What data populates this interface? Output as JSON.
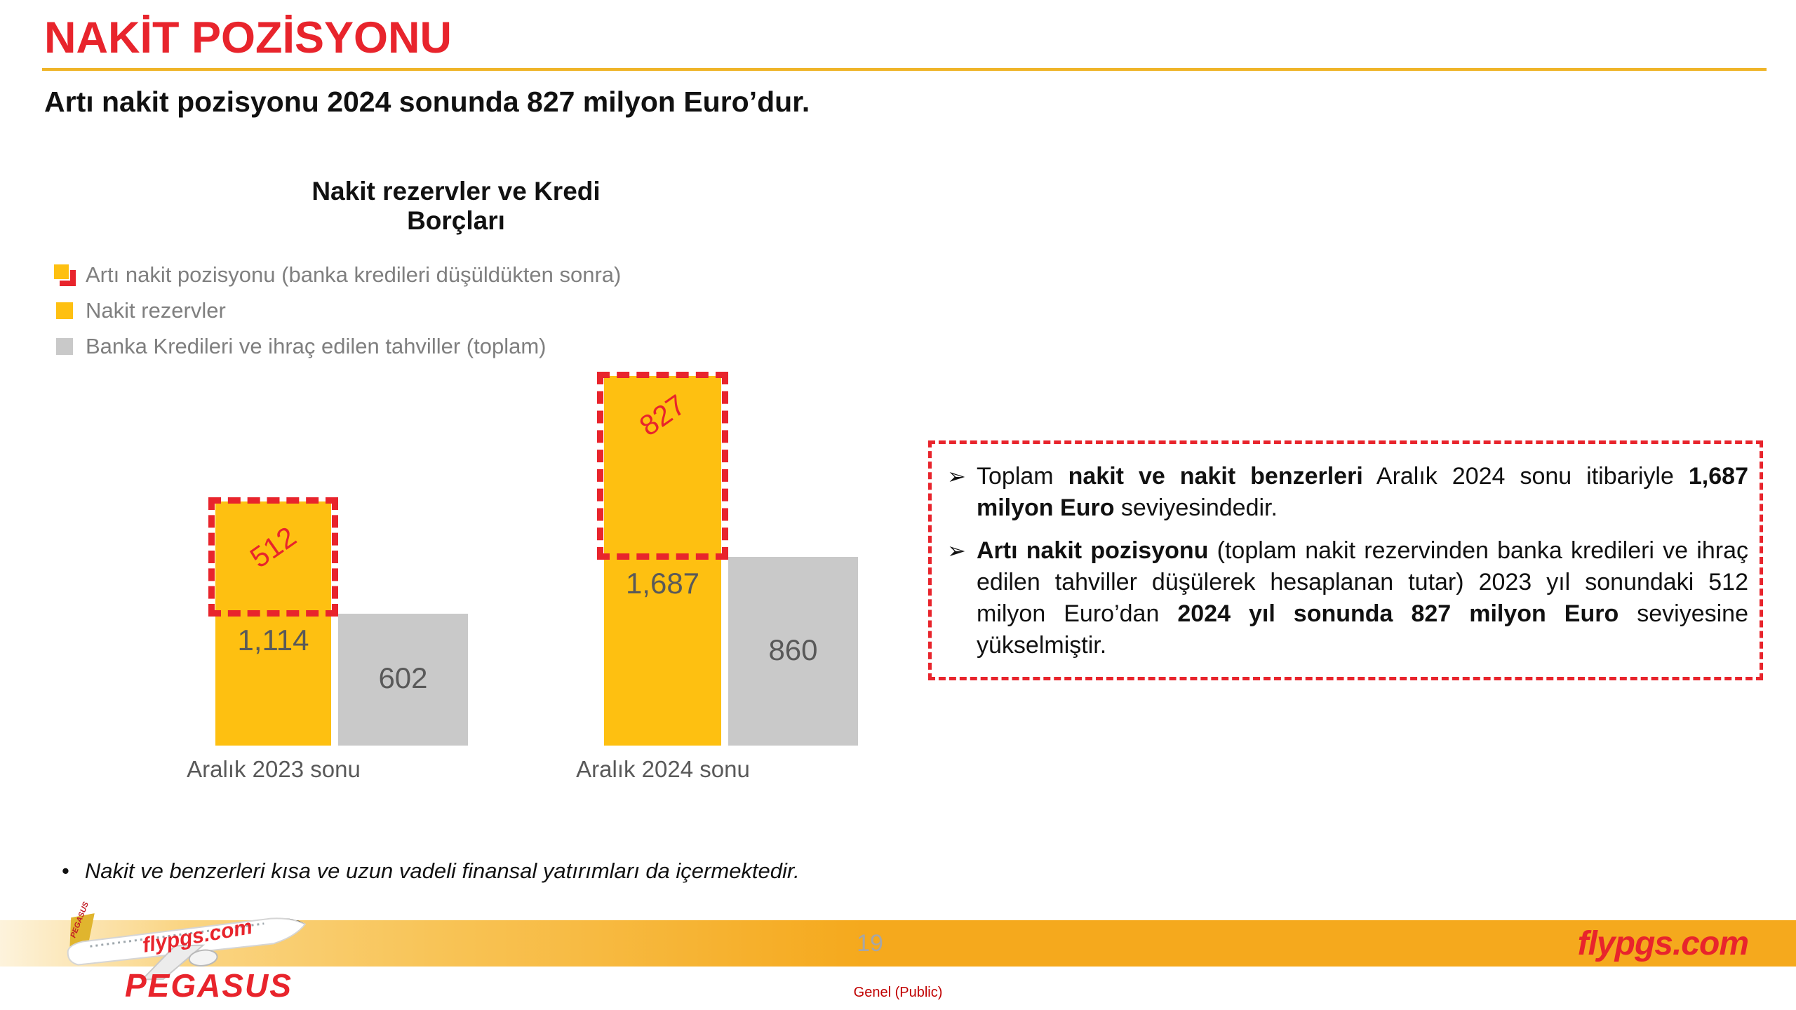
{
  "slide": {
    "title": "NAKİT POZİSYONU",
    "subtitle": "Artı nakit pozisyonu 2024 sonunda 827 milyon Euro’dur.",
    "footnote_marker": "•",
    "footnote": "Nakit ve benzerleri kısa ve uzun vadeli finansal yatırımları da içermektedir.",
    "page_number": "19",
    "classification": "Genel (Public)",
    "brand": {
      "wordmark": "PEGASUS",
      "website": "flypgs.com",
      "plane_fuselage_text": "flypgs.com",
      "plane_tail_text": "PEGASUS"
    }
  },
  "colors": {
    "brand_red": "#E8242C",
    "bar_yellow": "#FEC011",
    "bar_gray": "#C9C9C9",
    "value_text": "#595959",
    "legend_text": "#7F7F7F",
    "divider_yellow": "#EFB428",
    "footer_amber": "#F5A91D",
    "classification_red": "#C00000",
    "page_number_gray": "#A6A6A6"
  },
  "chart": {
    "title": "Nakit rezervler ve Kredi Borçları",
    "legend": [
      {
        "icon": "net-position-dashed-icon",
        "label": "Artı nakit pozisyonu (banka kredileri düşüldükten sonra)"
      },
      {
        "icon": "cash-reserves-icon",
        "label": "Nakit rezervler"
      },
      {
        "icon": "bank-loans-icon",
        "label": "Banka Kredileri ve ihraç edilen tahviller (toplam)"
      }
    ],
    "groups": [
      {
        "label": "Aralık 2023 sonu",
        "cash_reserves": "1,114",
        "debt": "602",
        "net": "512"
      },
      {
        "label": "Aralık 2024 sonu",
        "cash_reserves": "1,687",
        "debt": "860",
        "net": "827"
      }
    ]
  },
  "chart_data": {
    "type": "bar",
    "title": "Nakit rezervler ve Kredi Borçları",
    "categories": [
      "Aralık 2023 sonu",
      "Aralık 2024 sonu"
    ],
    "series": [
      {
        "name": "Nakit rezervler",
        "values": [
          1114,
          1687
        ],
        "color": "#FEC011"
      },
      {
        "name": "Banka Kredileri ve ihraç edilen tahviller (toplam)",
        "values": [
          602,
          860
        ],
        "color": "#C9C9C9"
      },
      {
        "name": "Artı nakit pozisyonu (banka kredileri düşüldükten sonra)",
        "values": [
          512,
          827
        ],
        "color": "#E8242C",
        "style": "dashed-outline-overlay"
      }
    ],
    "data_labels": [
      "1,114",
      "602",
      "512",
      "1,687",
      "860",
      "827"
    ],
    "ylim": [
      0,
      1800
    ],
    "grid": false,
    "axes_visible": false,
    "legend_position": "top-left"
  },
  "infobox": {
    "bullets": [
      {
        "marker": "➢",
        "segments": [
          {
            "text": "Toplam "
          },
          {
            "text": "nakit ve nakit benzerleri",
            "bold": true
          },
          {
            "text": " Aralık 2024 sonu itibariyle "
          },
          {
            "text": "1,687 milyon Euro",
            "bold": true
          },
          {
            "text": " seviyesindedir."
          }
        ]
      },
      {
        "marker": "➢",
        "segments": [
          {
            "text": "Artı nakit pozisyonu",
            "bold": true
          },
          {
            "text": " (toplam nakit rezervinden banka kredileri ve ihraç edilen tahviller düşülerek hesaplanan tutar) 2023 yıl sonundaki 512 milyon Euro’dan "
          },
          {
            "text": "2024 yıl sonunda 827 milyon Euro",
            "bold": true
          },
          {
            "text": " seviyesine yükselmiştir."
          }
        ]
      }
    ]
  }
}
